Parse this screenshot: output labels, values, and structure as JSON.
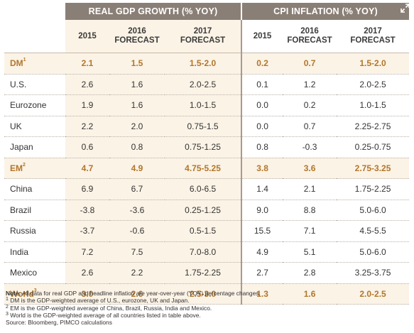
{
  "header": {
    "gdp_group": "REAL GDP GROWTH (% YOY)",
    "cpi_group": "CPI INFLATION (% YOY)",
    "gdp_cols": [
      {
        "line1": "2015",
        "line2": ""
      },
      {
        "line1": "2016",
        "line2": "FORECAST"
      },
      {
        "line1": "2017",
        "line2": "FORECAST"
      }
    ],
    "cpi_cols": [
      {
        "line1": "2015",
        "line2": ""
      },
      {
        "line1": "2016",
        "line2": "FORECAST"
      },
      {
        "line1": "2017",
        "line2": "FORECAST"
      }
    ]
  },
  "rows": [
    {
      "label": "DM",
      "sup": "1",
      "highlight": true,
      "gdp": [
        "2.1",
        "1.5",
        "1.5-2.0"
      ],
      "cpi": [
        "0.2",
        "0.7",
        "1.5-2.0"
      ]
    },
    {
      "label": "U.S.",
      "sup": "",
      "highlight": false,
      "gdp": [
        "2.6",
        "1.6",
        "2.0-2.5"
      ],
      "cpi": [
        "0.1",
        "1.2",
        "2.0-2.5"
      ]
    },
    {
      "label": "Eurozone",
      "sup": "",
      "highlight": false,
      "gdp": [
        "1.9",
        "1.6",
        "1.0-1.5"
      ],
      "cpi": [
        "0.0",
        "0.2",
        "1.0-1.5"
      ]
    },
    {
      "label": "UK",
      "sup": "",
      "highlight": false,
      "gdp": [
        "2.2",
        "2.0",
        "0.75-1.5"
      ],
      "cpi": [
        "0.0",
        "0.7",
        "2.25-2.75"
      ]
    },
    {
      "label": "Japan",
      "sup": "",
      "highlight": false,
      "gdp": [
        "0.6",
        "0.8",
        "0.75-1.25"
      ],
      "cpi": [
        "0.8",
        "-0.3",
        "0.25-0.75"
      ]
    },
    {
      "label": "EM",
      "sup": "2",
      "highlight": true,
      "gdp": [
        "4.7",
        "4.9",
        "4.75-5.25"
      ],
      "cpi": [
        "3.8",
        "3.6",
        "2.75-3.25"
      ]
    },
    {
      "label": "China",
      "sup": "",
      "highlight": false,
      "gdp": [
        "6.9",
        "6.7",
        "6.0-6.5"
      ],
      "cpi": [
        "1.4",
        "2.1",
        "1.75-2.25"
      ]
    },
    {
      "label": "Brazil",
      "sup": "",
      "highlight": false,
      "gdp": [
        "-3.8",
        "-3.6",
        "0.25-1.25"
      ],
      "cpi": [
        "9.0",
        "8.8",
        "5.0-6.0"
      ]
    },
    {
      "label": "Russia",
      "sup": "",
      "highlight": false,
      "gdp": [
        "-3.7",
        "-0.6",
        "0.5-1.5"
      ],
      "cpi": [
        "15.5",
        "7.1",
        "4.5-5.5"
      ]
    },
    {
      "label": "India",
      "sup": "",
      "highlight": false,
      "gdp": [
        "7.2",
        "7.5",
        "7.0-8.0"
      ],
      "cpi": [
        "4.9",
        "5.1",
        "5.0-6.0"
      ]
    },
    {
      "label": "Mexico",
      "sup": "",
      "highlight": false,
      "gdp": [
        "2.6",
        "2.2",
        "1.75-2.25"
      ],
      "cpi": [
        "2.7",
        "2.8",
        "3.25-3.75"
      ]
    },
    {
      "label": "World",
      "sup": "3",
      "highlight": true,
      "gdp": [
        "3.0",
        "2.6",
        "2.5-3.0"
      ],
      "cpi": [
        "1.3",
        "1.6",
        "2.0-2.5"
      ]
    }
  ],
  "notes": {
    "note_label": "Note:",
    "note_text": " All data for real GDP and headline inflation are year-over-year (YOY) percentage changes.",
    "footnotes": [
      {
        "sup": "1",
        "text": " DM is the GDP-weighted average of U.S., eurozone, UK and Japan."
      },
      {
        "sup": "2",
        "text": " EM is the GDP-weighted average of China, Brazil, Russia, India and Mexico."
      },
      {
        "sup": "3",
        "text": " World is the GDP-weighted average of all countries listed in table above."
      }
    ],
    "source": "Source: Bloomberg, PIMCO calculations"
  },
  "icons": {
    "expand": "expand-arrows-icon"
  },
  "colors": {
    "header_bg": "#8a7f76",
    "highlight_text": "#b2762b",
    "shade": "#fbf3e6"
  }
}
